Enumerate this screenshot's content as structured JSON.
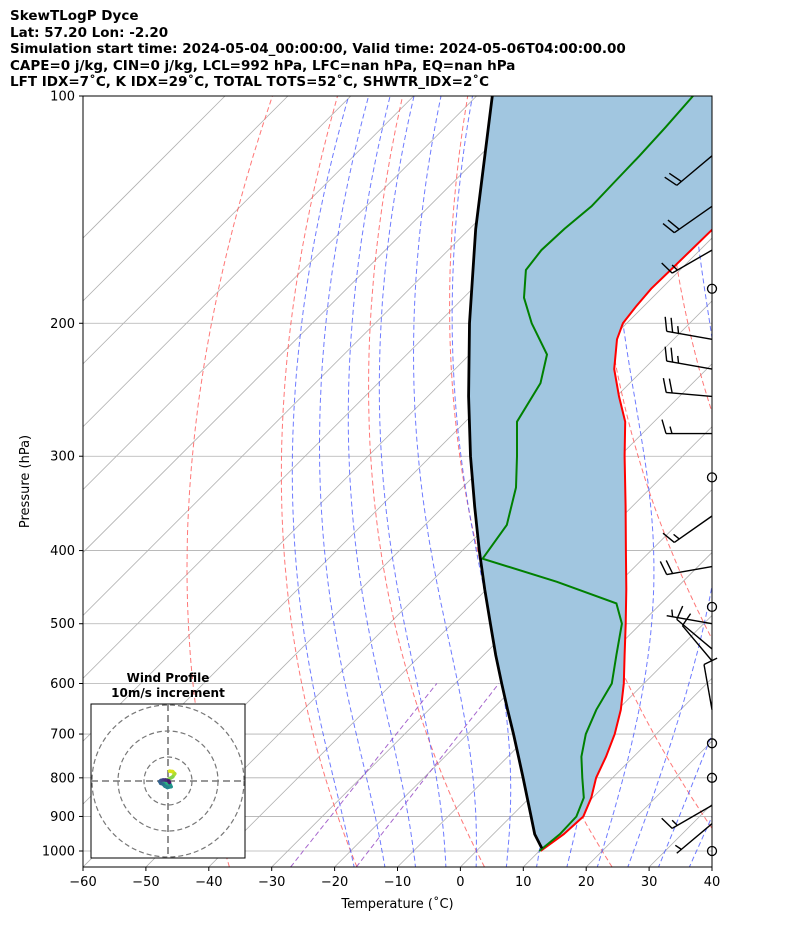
{
  "title": {
    "line1": "SkewTLogP Dyce",
    "line2": "Lat: 57.20   Lon: -2.20",
    "line3": "Simulation start time: 2024-05-04_00:00:00, Valid time: 2024-05-06T04:00:00.00",
    "line4": "CAPE=0 j/kg, CIN=0 j/kg, LCL=992 hPa, LFC=nan hPa, EQ=nan hPa",
    "line5": "LFT IDX=7˚C, K IDX=29˚C, TOTAL TOTS=52˚C, SHWTR_IDX=2˚C"
  },
  "colors": {
    "temperature": "#ff0000",
    "dewpoint": "#008000",
    "parcel": "#000000",
    "cape_fill": "#a1c6e0",
    "dry_adiabat": "#ff5555",
    "moist_adiabat": "#4a5aff",
    "isotherm": "#b0b0b0",
    "mixing_ratio": "#9040c0"
  },
  "chart_data": {
    "type": "line",
    "xlabel": "Temperature (˚C)",
    "ylabel": "Pressure (hPa)",
    "xlim": [
      -60,
      40
    ],
    "ylim": [
      1050,
      100
    ],
    "y_scale": "log",
    "x_ticks": [
      -60,
      -50,
      -40,
      -30,
      -20,
      -10,
      0,
      10,
      20,
      30,
      40
    ],
    "x_tick_labels": [
      "−60",
      "−50",
      "−40",
      "−30",
      "−20",
      "−10",
      "0",
      "10",
      "20",
      "30",
      "40"
    ],
    "y_ticks": [
      1000,
      900,
      800,
      700,
      600,
      500,
      400,
      300,
      200,
      100
    ],
    "y_tick_labels": [
      "1000",
      "900",
      "800",
      "700",
      "600",
      "500",
      "400",
      "300",
      "200",
      "100"
    ],
    "skew_degrees": 45,
    "grid": true,
    "series": [
      {
        "key": "temperature",
        "pressure": [
          1000,
          950,
          900,
          850,
          800,
          750,
          700,
          650,
          600,
          550,
          500,
          450,
          400,
          350,
          300,
          270,
          250,
          230,
          210,
          200,
          190,
          180,
          170,
          160,
          150,
          140,
          130,
          120,
          110,
          100
        ],
        "temperature": [
          10.2,
          11.2,
          11.5,
          9.8,
          7.4,
          5.6,
          3.4,
          0.5,
          -3.2,
          -7.6,
          -12.4,
          -17.8,
          -24.0,
          -31.0,
          -39.2,
          -44.6,
          -49.6,
          -54.7,
          -59.0,
          -60.6,
          -61.2,
          -61.6,
          -61.5,
          -61.4,
          -61.3,
          -61.5,
          -61.5,
          -62.2,
          -62.8,
          -63.5
        ]
      },
      {
        "key": "dewpoint",
        "pressure": [
          1000,
          950,
          900,
          850,
          800,
          750,
          700,
          650,
          600,
          550,
          500,
          470,
          440,
          410,
          370,
          330,
          300,
          270,
          240,
          220,
          200,
          185,
          170,
          160,
          150,
          140,
          130,
          120,
          110,
          100
        ],
        "temperature": [
          10.0,
          10.6,
          10.4,
          8.6,
          5.2,
          1.7,
          -1.2,
          -3.4,
          -5.1,
          -8.9,
          -13.0,
          -17.1,
          -30.0,
          -45.5,
          -47.0,
          -51.5,
          -56.3,
          -61.8,
          -64.2,
          -67.7,
          -75.1,
          -80.4,
          -84.5,
          -85.2,
          -84.9,
          -84.2,
          -84.4,
          -84.6,
          -85.0,
          -85.6
        ]
      },
      {
        "key": "parcel",
        "pressure": [
          992,
          950,
          900,
          850,
          800,
          750,
          700,
          650,
          600,
          550,
          500,
          450,
          400,
          350,
          300,
          250,
          200,
          150,
          100
        ],
        "temperature": [
          10.0,
          6.6,
          3.2,
          -0.4,
          -4.2,
          -8.3,
          -12.7,
          -17.5,
          -22.6,
          -28.1,
          -33.9,
          -40.3,
          -47.3,
          -55.0,
          -63.7,
          -73.5,
          -85.0,
          -99.0,
          -117.5
        ]
      }
    ],
    "wind_barbs": {
      "pressure": [
        1000,
        920,
        870,
        800,
        720,
        650,
        560,
        540,
        500,
        475,
        420,
        360,
        320,
        280,
        250,
        230,
        210,
        180,
        160,
        140,
        120
      ],
      "speed_kt": [
        0,
        5,
        15,
        0,
        0,
        10,
        10,
        10,
        5,
        0,
        20,
        15,
        0,
        15,
        20,
        25,
        25,
        0,
        15,
        20,
        20
      ],
      "direction_deg": [
        0,
        230,
        240,
        0,
        0,
        350,
        320,
        310,
        280,
        0,
        260,
        235,
        0,
        270,
        275,
        280,
        280,
        0,
        240,
        235,
        230
      ]
    },
    "inset": {
      "title": "Wind Profile",
      "subtitle": "10m/s increment",
      "type": "hodograph",
      "u": [
        0.6,
        1.8,
        2.6,
        1.8,
        0.4,
        -0.8,
        -1.4,
        -1.2,
        -0.3,
        0.9,
        1.2,
        -0.2,
        -1.2,
        -1.9,
        -2.8,
        -3.2,
        -2.7,
        -1.9,
        -1.0,
        -0.3,
        0.3,
        0.6
      ],
      "v": [
        3.8,
        3.6,
        2.8,
        1.6,
        0.8,
        0.2,
        -0.3,
        -1.0,
        -1.3,
        -1.5,
        -2.2,
        -2.5,
        -2.0,
        -1.2,
        -0.9,
        -0.2,
        0.2,
        0.4,
        0.4,
        0.2,
        0.0,
        -0.6
      ]
    }
  }
}
